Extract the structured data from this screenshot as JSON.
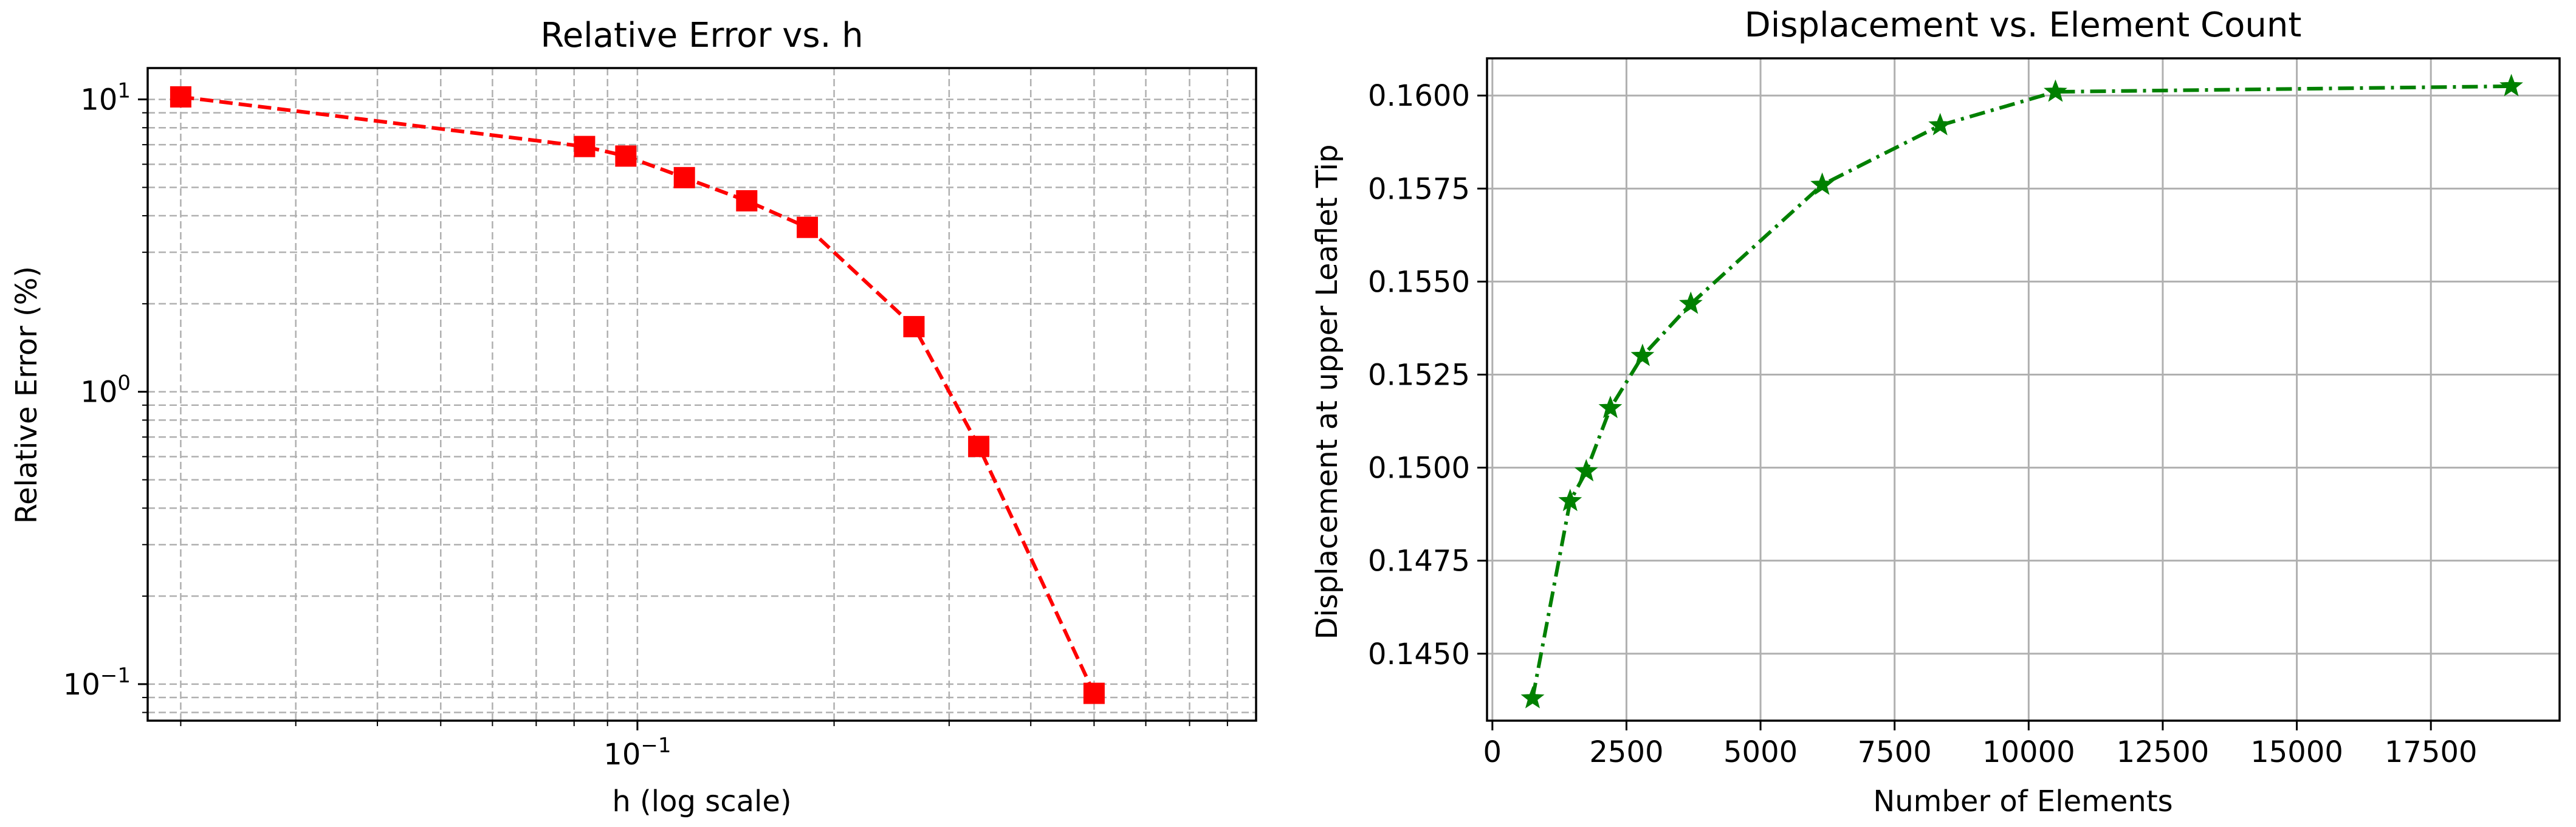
{
  "chart_data": [
    {
      "type": "line",
      "title": "Relative Error vs. h",
      "xlabel": "h (log scale)",
      "ylabel": "Relative Error (%)",
      "xscale": "log",
      "yscale": "log",
      "xlim": [
        0.0178,
        0.885
      ],
      "ylim": [
        0.075,
        12.8
      ],
      "x_tick_values": [
        0.1
      ],
      "x_tick_labels": [
        "10^-1"
      ],
      "y_tick_values": [
        0.1,
        1,
        10
      ],
      "y_tick_labels": [
        "10^-1",
        "10^0",
        "10^1"
      ],
      "grid": true,
      "grid_style": "dashed",
      "series": [
        {
          "color": "#ff0000",
          "marker": "square",
          "linestyle": "dashed",
          "x": [
            0.02,
            0.083,
            0.096,
            0.118,
            0.147,
            0.182,
            0.265,
            0.333,
            0.5
          ],
          "y": [
            10.2,
            6.9,
            6.4,
            5.4,
            4.5,
            3.65,
            1.67,
            0.65,
            0.093
          ]
        }
      ]
    },
    {
      "type": "line",
      "title": "Displacement vs. Element Count",
      "xlabel": "Number of Elements",
      "ylabel": "Displacement at upper Leaflet Tip",
      "xlim": [
        -100,
        19900
      ],
      "ylim": [
        0.1432,
        0.161
      ],
      "x_tick_values": [
        0,
        2500,
        5000,
        7500,
        10000,
        12500,
        15000,
        17500
      ],
      "x_tick_labels": [
        "0",
        "2500",
        "5000",
        "7500",
        "10000",
        "12500",
        "15000",
        "17500"
      ],
      "y_tick_values": [
        0.145,
        0.1475,
        0.15,
        0.1525,
        0.155,
        0.1575,
        0.16
      ],
      "y_tick_labels": [
        "0.1450",
        "0.1475",
        "0.1500",
        "0.1525",
        "0.1550",
        "0.1575",
        "0.1600"
      ],
      "grid": true,
      "grid_style": "solid",
      "series": [
        {
          "color": "#008000",
          "marker": "star",
          "linestyle": "dashdot",
          "x": [
            750,
            1450,
            1750,
            2200,
            2800,
            3700,
            6150,
            8350,
            10500,
            19000
          ],
          "y": [
            0.1438,
            0.1491,
            0.1499,
            0.1516,
            0.153,
            0.1544,
            0.1576,
            0.1592,
            0.1601,
            0.16025
          ]
        }
      ]
    }
  ]
}
